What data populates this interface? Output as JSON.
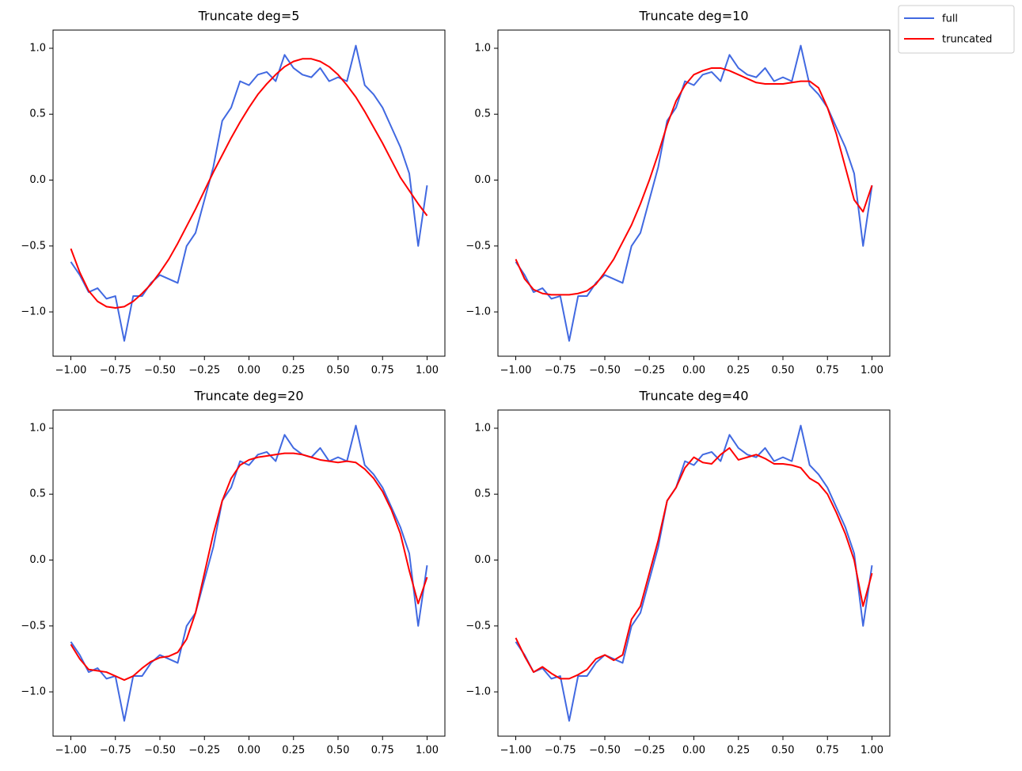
{
  "chart_data": [
    {
      "type": "line",
      "title": "Truncate deg=5",
      "x": [
        -1.0,
        -0.95,
        -0.9,
        -0.85,
        -0.8,
        -0.75,
        -0.7,
        -0.65,
        -0.6,
        -0.55,
        -0.5,
        -0.45,
        -0.4,
        -0.35,
        -0.3,
        -0.25,
        -0.2,
        -0.15,
        -0.1,
        -0.05,
        0.0,
        0.05,
        0.1,
        0.15,
        0.2,
        0.25,
        0.3,
        0.35,
        0.4,
        0.45,
        0.5,
        0.55,
        0.6,
        0.65,
        0.7,
        0.75,
        0.8,
        0.85,
        0.9,
        0.95,
        1.0
      ],
      "series": [
        {
          "name": "full",
          "color": "#4169e1",
          "values": [
            -0.62,
            -0.72,
            -0.85,
            -0.82,
            -0.9,
            -0.88,
            -1.22,
            -0.88,
            -0.88,
            -0.78,
            -0.72,
            -0.75,
            -0.78,
            -0.5,
            -0.4,
            -0.15,
            0.1,
            0.45,
            0.55,
            0.75,
            0.72,
            0.8,
            0.82,
            0.75,
            0.95,
            0.85,
            0.8,
            0.78,
            0.85,
            0.75,
            0.78,
            0.75,
            1.02,
            0.72,
            0.65,
            0.55,
            0.4,
            0.25,
            0.05,
            -0.5,
            -0.04
          ]
        },
        {
          "name": "truncated",
          "color": "#ff0000",
          "values": [
            -0.52,
            -0.7,
            -0.84,
            -0.92,
            -0.96,
            -0.97,
            -0.96,
            -0.92,
            -0.86,
            -0.79,
            -0.7,
            -0.6,
            -0.48,
            -0.35,
            -0.22,
            -0.08,
            0.06,
            0.19,
            0.32,
            0.44,
            0.55,
            0.65,
            0.73,
            0.8,
            0.86,
            0.9,
            0.92,
            0.92,
            0.9,
            0.86,
            0.8,
            0.72,
            0.63,
            0.52,
            0.4,
            0.28,
            0.15,
            0.02,
            -0.08,
            -0.18,
            -0.27
          ]
        }
      ],
      "xlim": [
        -1.1,
        1.1
      ],
      "ylim": [
        -1.336,
        1.138
      ],
      "xticks": [
        {
          "value": -1,
          "label": "−1.00"
        },
        {
          "value": -0.75,
          "label": "−0.75"
        },
        {
          "value": -0.5,
          "label": "−0.50"
        },
        {
          "value": -0.25,
          "label": "−0.25"
        },
        {
          "value": 0,
          "label": "0.00"
        },
        {
          "value": 0.25,
          "label": "0.25"
        },
        {
          "value": 0.5,
          "label": "0.50"
        },
        {
          "value": 0.75,
          "label": "0.75"
        },
        {
          "value": 1,
          "label": "1.00"
        }
      ],
      "yticks": [
        {
          "value": -1,
          "label": "−1.0"
        },
        {
          "value": -0.5,
          "label": "−0.5"
        },
        {
          "value": 0,
          "label": "0.0"
        },
        {
          "value": 0.5,
          "label": "0.5"
        },
        {
          "value": 1,
          "label": "1.0"
        }
      ]
    },
    {
      "type": "line",
      "title": "Truncate deg=10",
      "x": [
        -1.0,
        -0.95,
        -0.9,
        -0.85,
        -0.8,
        -0.75,
        -0.7,
        -0.65,
        -0.6,
        -0.55,
        -0.5,
        -0.45,
        -0.4,
        -0.35,
        -0.3,
        -0.25,
        -0.2,
        -0.15,
        -0.1,
        -0.05,
        0.0,
        0.05,
        0.1,
        0.15,
        0.2,
        0.25,
        0.3,
        0.35,
        0.4,
        0.45,
        0.5,
        0.55,
        0.6,
        0.65,
        0.7,
        0.75,
        0.8,
        0.85,
        0.9,
        0.95,
        1.0
      ],
      "series": [
        {
          "name": "full",
          "color": "#4169e1",
          "values": [
            -0.62,
            -0.72,
            -0.85,
            -0.82,
            -0.9,
            -0.88,
            -1.22,
            -0.88,
            -0.88,
            -0.78,
            -0.72,
            -0.75,
            -0.78,
            -0.5,
            -0.4,
            -0.15,
            0.1,
            0.45,
            0.55,
            0.75,
            0.72,
            0.8,
            0.82,
            0.75,
            0.95,
            0.85,
            0.8,
            0.78,
            0.85,
            0.75,
            0.78,
            0.75,
            1.02,
            0.72,
            0.65,
            0.55,
            0.4,
            0.25,
            0.05,
            -0.5,
            -0.04
          ]
        },
        {
          "name": "truncated",
          "color": "#ff0000",
          "values": [
            -0.6,
            -0.75,
            -0.83,
            -0.86,
            -0.87,
            -0.87,
            -0.87,
            -0.86,
            -0.84,
            -0.79,
            -0.7,
            -0.6,
            -0.47,
            -0.34,
            -0.18,
            0.0,
            0.2,
            0.42,
            0.6,
            0.72,
            0.8,
            0.83,
            0.85,
            0.85,
            0.83,
            0.8,
            0.77,
            0.74,
            0.73,
            0.73,
            0.73,
            0.74,
            0.75,
            0.75,
            0.7,
            0.55,
            0.35,
            0.1,
            -0.15,
            -0.24,
            -0.04
          ]
        }
      ],
      "xlim": [
        -1.1,
        1.1
      ],
      "ylim": [
        -1.336,
        1.138
      ],
      "xticks": [
        {
          "value": -1,
          "label": "−1.00"
        },
        {
          "value": -0.75,
          "label": "−0.75"
        },
        {
          "value": -0.5,
          "label": "−0.50"
        },
        {
          "value": -0.25,
          "label": "−0.25"
        },
        {
          "value": 0,
          "label": "0.00"
        },
        {
          "value": 0.25,
          "label": "0.25"
        },
        {
          "value": 0.5,
          "label": "0.50"
        },
        {
          "value": 0.75,
          "label": "0.75"
        },
        {
          "value": 1,
          "label": "1.00"
        }
      ],
      "yticks": [
        {
          "value": -1,
          "label": "−1.0"
        },
        {
          "value": -0.5,
          "label": "−0.5"
        },
        {
          "value": 0,
          "label": "0.0"
        },
        {
          "value": 0.5,
          "label": "0.5"
        },
        {
          "value": 1,
          "label": "1.0"
        }
      ]
    },
    {
      "type": "line",
      "title": "Truncate deg=20",
      "x": [
        -1.0,
        -0.95,
        -0.9,
        -0.85,
        -0.8,
        -0.75,
        -0.7,
        -0.65,
        -0.6,
        -0.55,
        -0.5,
        -0.45,
        -0.4,
        -0.35,
        -0.3,
        -0.25,
        -0.2,
        -0.15,
        -0.1,
        -0.05,
        0.0,
        0.05,
        0.1,
        0.15,
        0.2,
        0.25,
        0.3,
        0.35,
        0.4,
        0.45,
        0.5,
        0.55,
        0.6,
        0.65,
        0.7,
        0.75,
        0.8,
        0.85,
        0.9,
        0.95,
        1.0
      ],
      "series": [
        {
          "name": "full",
          "color": "#4169e1",
          "values": [
            -0.62,
            -0.72,
            -0.85,
            -0.82,
            -0.9,
            -0.88,
            -1.22,
            -0.88,
            -0.88,
            -0.78,
            -0.72,
            -0.75,
            -0.78,
            -0.5,
            -0.4,
            -0.15,
            0.1,
            0.45,
            0.55,
            0.75,
            0.72,
            0.8,
            0.82,
            0.75,
            0.95,
            0.85,
            0.8,
            0.78,
            0.85,
            0.75,
            0.78,
            0.75,
            1.02,
            0.72,
            0.65,
            0.55,
            0.4,
            0.25,
            0.05,
            -0.5,
            -0.04
          ]
        },
        {
          "name": "truncated",
          "color": "#ff0000",
          "values": [
            -0.64,
            -0.75,
            -0.83,
            -0.84,
            -0.85,
            -0.88,
            -0.91,
            -0.88,
            -0.82,
            -0.77,
            -0.74,
            -0.73,
            -0.7,
            -0.6,
            -0.4,
            -0.1,
            0.2,
            0.45,
            0.62,
            0.72,
            0.76,
            0.78,
            0.79,
            0.8,
            0.81,
            0.81,
            0.8,
            0.78,
            0.76,
            0.75,
            0.74,
            0.75,
            0.74,
            0.69,
            0.62,
            0.52,
            0.38,
            0.2,
            -0.08,
            -0.33,
            -0.13
          ]
        }
      ],
      "xlim": [
        -1.1,
        1.1
      ],
      "ylim": [
        -1.336,
        1.138
      ],
      "xticks": [
        {
          "value": -1,
          "label": "−1.00"
        },
        {
          "value": -0.75,
          "label": "−0.75"
        },
        {
          "value": -0.5,
          "label": "−0.50"
        },
        {
          "value": -0.25,
          "label": "−0.25"
        },
        {
          "value": 0,
          "label": "0.00"
        },
        {
          "value": 0.25,
          "label": "0.25"
        },
        {
          "value": 0.5,
          "label": "0.50"
        },
        {
          "value": 0.75,
          "label": "0.75"
        },
        {
          "value": 1,
          "label": "1.00"
        }
      ],
      "yticks": [
        {
          "value": -1,
          "label": "−1.0"
        },
        {
          "value": -0.5,
          "label": "−0.5"
        },
        {
          "value": 0,
          "label": "0.0"
        },
        {
          "value": 0.5,
          "label": "0.5"
        },
        {
          "value": 1,
          "label": "1.0"
        }
      ]
    },
    {
      "type": "line",
      "title": "Truncate deg=40",
      "x": [
        -1.0,
        -0.95,
        -0.9,
        -0.85,
        -0.8,
        -0.75,
        -0.7,
        -0.65,
        -0.6,
        -0.55,
        -0.5,
        -0.45,
        -0.4,
        -0.35,
        -0.3,
        -0.25,
        -0.2,
        -0.15,
        -0.1,
        -0.05,
        0.0,
        0.05,
        0.1,
        0.15,
        0.2,
        0.25,
        0.3,
        0.35,
        0.4,
        0.45,
        0.5,
        0.55,
        0.6,
        0.65,
        0.7,
        0.75,
        0.8,
        0.85,
        0.9,
        0.95,
        1.0
      ],
      "series": [
        {
          "name": "full",
          "color": "#4169e1",
          "values": [
            -0.62,
            -0.72,
            -0.85,
            -0.82,
            -0.9,
            -0.88,
            -1.22,
            -0.88,
            -0.88,
            -0.78,
            -0.72,
            -0.75,
            -0.78,
            -0.5,
            -0.4,
            -0.15,
            0.1,
            0.45,
            0.55,
            0.75,
            0.72,
            0.8,
            0.82,
            0.75,
            0.95,
            0.85,
            0.8,
            0.78,
            0.85,
            0.75,
            0.78,
            0.75,
            1.02,
            0.72,
            0.65,
            0.55,
            0.4,
            0.25,
            0.05,
            -0.5,
            -0.04
          ]
        },
        {
          "name": "truncated",
          "color": "#ff0000",
          "values": [
            -0.59,
            -0.73,
            -0.85,
            -0.81,
            -0.86,
            -0.9,
            -0.9,
            -0.87,
            -0.83,
            -0.75,
            -0.72,
            -0.76,
            -0.72,
            -0.45,
            -0.35,
            -0.1,
            0.15,
            0.45,
            0.55,
            0.7,
            0.78,
            0.74,
            0.73,
            0.8,
            0.85,
            0.76,
            0.78,
            0.8,
            0.77,
            0.73,
            0.73,
            0.72,
            0.7,
            0.62,
            0.58,
            0.5,
            0.36,
            0.2,
            0.0,
            -0.35,
            -0.1
          ]
        }
      ],
      "xlim": [
        -1.1,
        1.1
      ],
      "ylim": [
        -1.336,
        1.138
      ],
      "xticks": [
        {
          "value": -1,
          "label": "−1.00"
        },
        {
          "value": -0.75,
          "label": "−0.75"
        },
        {
          "value": -0.5,
          "label": "−0.50"
        },
        {
          "value": -0.25,
          "label": "−0.25"
        },
        {
          "value": 0,
          "label": "0.00"
        },
        {
          "value": 0.25,
          "label": "0.25"
        },
        {
          "value": 0.5,
          "label": "0.50"
        },
        {
          "value": 0.75,
          "label": "0.75"
        },
        {
          "value": 1,
          "label": "1.00"
        }
      ],
      "yticks": [
        {
          "value": -1,
          "label": "−1.0"
        },
        {
          "value": -0.5,
          "label": "−0.5"
        },
        {
          "value": 0,
          "label": "0.0"
        },
        {
          "value": 0.5,
          "label": "0.5"
        },
        {
          "value": 1,
          "label": "1.0"
        }
      ]
    }
  ]
}
